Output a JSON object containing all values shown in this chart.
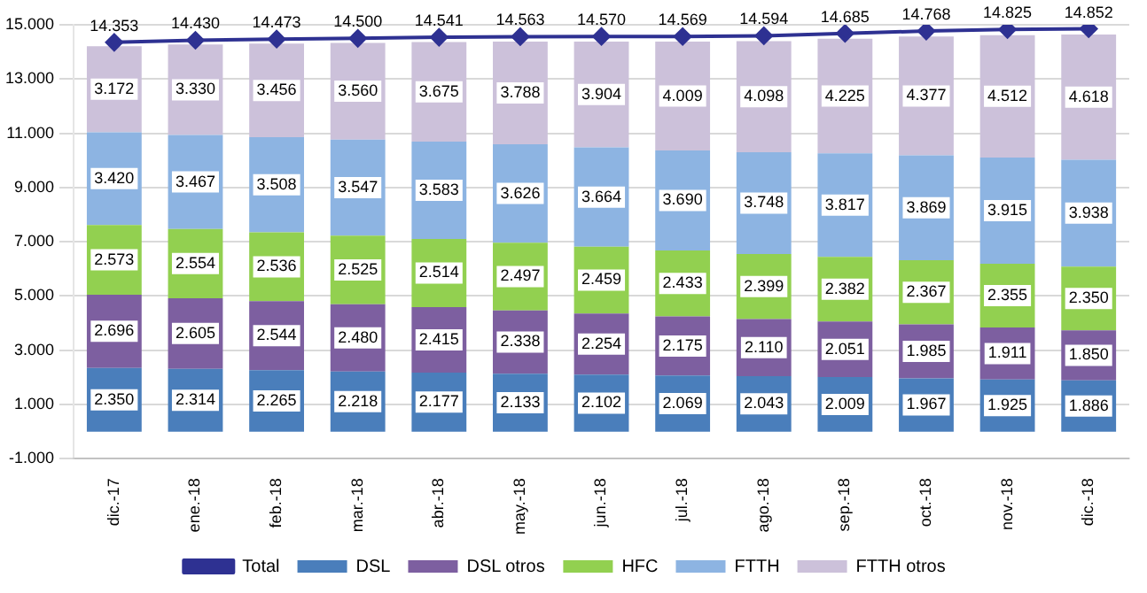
{
  "chart_data": {
    "type": "bar",
    "stacked": true,
    "categories": [
      "dic.-17",
      "ene.-18",
      "feb.-18",
      "mar.-18",
      "abr.-18",
      "may.-18",
      "jun.-18",
      "jul.-18",
      "ago.-18",
      "sep.-18",
      "oct.-18",
      "nov.-18",
      "dic.-18"
    ],
    "series": [
      {
        "name": "DSL",
        "color": "#4a7ebb",
        "values": [
          2350,
          2314,
          2265,
          2218,
          2177,
          2133,
          2102,
          2069,
          2043,
          2009,
          1967,
          1925,
          1886
        ],
        "value_labels": [
          "2.350",
          "2.314",
          "2.265",
          "2.218",
          "2.177",
          "2.133",
          "2.102",
          "2.069",
          "2.043",
          "2.009",
          "1.967",
          "1.925",
          "1.886"
        ]
      },
      {
        "name": "DSL otros",
        "color": "#7d5fa0",
        "values": [
          2696,
          2605,
          2544,
          2480,
          2415,
          2338,
          2254,
          2175,
          2110,
          2051,
          1985,
          1911,
          1850
        ],
        "value_labels": [
          "2.696",
          "2.605",
          "2.544",
          "2.480",
          "2.415",
          "2.338",
          "2.254",
          "2.175",
          "2.110",
          "2.051",
          "1.985",
          "1.911",
          "1.850"
        ]
      },
      {
        "name": "HFC",
        "color": "#92d050",
        "values": [
          2573,
          2554,
          2536,
          2525,
          2514,
          2497,
          2459,
          2433,
          2399,
          2382,
          2367,
          2355,
          2350
        ],
        "value_labels": [
          "2.573",
          "2.554",
          "2.536",
          "2.525",
          "2.514",
          "2.497",
          "2.459",
          "2.433",
          "2.399",
          "2.382",
          "2.367",
          "2.355",
          "2.350"
        ]
      },
      {
        "name": "FTTH",
        "color": "#8db4e2",
        "values": [
          3420,
          3467,
          3508,
          3547,
          3583,
          3626,
          3664,
          3690,
          3748,
          3817,
          3869,
          3915,
          3938
        ],
        "value_labels": [
          "3.420",
          "3.467",
          "3.508",
          "3.547",
          "3.583",
          "3.626",
          "3.664",
          "3.690",
          "3.748",
          "3.817",
          "3.869",
          "3.915",
          "3.938"
        ]
      },
      {
        "name": "FTTH otros",
        "color": "#ccc1da",
        "values": [
          3172,
          3330,
          3456,
          3560,
          3675,
          3788,
          3904,
          4009,
          4098,
          4225,
          4377,
          4512,
          4618
        ],
        "value_labels": [
          "3.172",
          "3.330",
          "3.456",
          "3.560",
          "3.675",
          "3.788",
          "3.904",
          "4.009",
          "4.098",
          "4.225",
          "4.377",
          "4.512",
          "4.618"
        ]
      },
      {
        "name": "Total",
        "type": "line",
        "color": "#2e3192",
        "marker": "diamond",
        "values": [
          14353,
          14430,
          14473,
          14500,
          14541,
          14563,
          14570,
          14569,
          14594,
          14685,
          14768,
          14825,
          14852
        ],
        "value_labels": [
          "14.353",
          "14.430",
          "14.473",
          "14.500",
          "14.541",
          "14.563",
          "14.570",
          "14.569",
          "14.594",
          "14.685",
          "14.768",
          "14.825",
          "14.852"
        ]
      }
    ],
    "ylim": [
      -1000,
      15000
    ],
    "yticks": [
      {
        "value": -1000,
        "label": "-1.000"
      },
      {
        "value": 1000,
        "label": "1.000"
      },
      {
        "value": 3000,
        "label": "3.000"
      },
      {
        "value": 5000,
        "label": "5.000"
      },
      {
        "value": 7000,
        "label": "7.000"
      },
      {
        "value": 9000,
        "label": "9.000"
      },
      {
        "value": 11000,
        "label": "11.000"
      },
      {
        "value": 13000,
        "label": "13.000"
      },
      {
        "value": 15000,
        "label": "15.000"
      }
    ],
    "grid": "y",
    "legend": "bottom"
  }
}
